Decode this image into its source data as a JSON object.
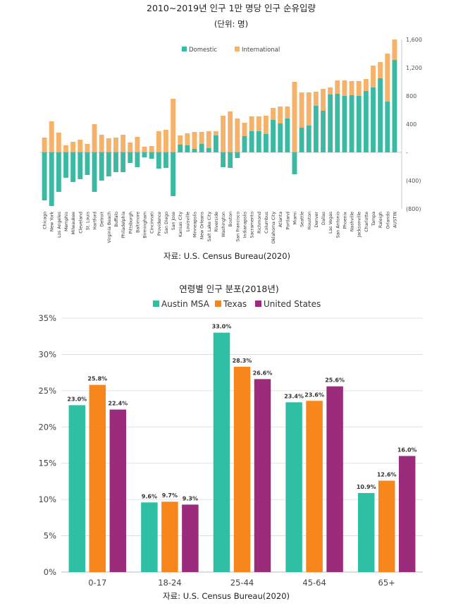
{
  "chart_data": [
    {
      "type": "bar",
      "stacked": true,
      "title": "2010~2019년 인구 1만 명당 인구 순유입량",
      "subtitle": "(단위: 명)",
      "source": "자료: U.S. Census Bureau(2020)",
      "legend_position": "top-center",
      "ylim": [
        -800,
        1600
      ],
      "y_ticks": [
        1600,
        1200,
        800,
        400,
        0,
        -400,
        -800
      ],
      "y_tick_labels": [
        "1,600",
        "1,200",
        "800",
        "400",
        "-",
        "(400)",
        "(800)"
      ],
      "categories": [
        "Chicago",
        "New York",
        "Los Angeles",
        "Memphis",
        "Milwaukee",
        "Cleveland",
        "St. Louis",
        "Hartford",
        "Detroit",
        "Virginia Beach",
        "Buffalo",
        "Philadelphia",
        "Pittsburgh",
        "Baltimore",
        "Birmingham",
        "Cincinnati",
        "Providence",
        "San Diego",
        "San Jose",
        "Kansas City",
        "Louisville",
        "Minneapolis",
        "New Orleans",
        "Salt Lake City",
        "Riverside",
        "Washington",
        "Boston",
        "San Francisco",
        "Indianapolis",
        "Sacramento",
        "Richmond",
        "Columbus",
        "Oklahoma City",
        "Atlanta",
        "Portland",
        "Miami",
        "Seattle",
        "Houston",
        "Denver",
        "Dallas",
        "Las Vegas",
        "San Antonio",
        "Phoenix",
        "Nashville",
        "Jacksonville",
        "Charlotte",
        "Tampa",
        "Raleigh",
        "Orlando",
        "AUSTIN"
      ],
      "series": [
        {
          "name": "Domestic",
          "color": "#3cb9a3",
          "values": [
            -680,
            -760,
            -560,
            -360,
            -420,
            -380,
            -320,
            -560,
            -400,
            -340,
            -280,
            -280,
            -150,
            -210,
            -70,
            -90,
            -230,
            -220,
            -620,
            110,
            100,
            50,
            120,
            60,
            240,
            -210,
            -220,
            -80,
            230,
            300,
            300,
            260,
            460,
            410,
            480,
            -310,
            350,
            380,
            660,
            590,
            820,
            830,
            800,
            810,
            800,
            870,
            920,
            1050,
            720,
            1310
          ]
        },
        {
          "name": "International",
          "color": "#f5b26b",
          "values": [
            210,
            440,
            280,
            100,
            150,
            180,
            120,
            400,
            250,
            200,
            210,
            250,
            140,
            220,
            80,
            90,
            300,
            320,
            760,
            130,
            170,
            240,
            170,
            240,
            60,
            520,
            580,
            480,
            190,
            210,
            210,
            260,
            170,
            240,
            170,
            1000,
            500,
            470,
            200,
            310,
            100,
            190,
            220,
            200,
            210,
            170,
            310,
            230,
            680,
            290
          ]
        }
      ]
    },
    {
      "type": "bar",
      "title": "연령별 인구 분포(2018년)",
      "source": "자료: U.S. Census Bureau(2020)",
      "legend_position": "top-center",
      "ylim": [
        0,
        35
      ],
      "y_ticks": [
        0,
        5,
        10,
        15,
        20,
        25,
        30,
        35
      ],
      "y_tick_labels": [
        "0%",
        "5%",
        "10%",
        "15%",
        "20%",
        "25%",
        "30%",
        "35%"
      ],
      "categories": [
        "0-17",
        "18-24",
        "25-44",
        "45-64",
        "65+"
      ],
      "series": [
        {
          "name": "Austin MSA",
          "color": "#2ebfa5",
          "values": [
            23.0,
            9.6,
            33.0,
            23.4,
            10.9
          ],
          "labels": [
            "23.0%",
            "9.6%",
            "33.0%",
            "23.4%",
            "10.9%"
          ]
        },
        {
          "name": "Texas",
          "color": "#f7861c",
          "values": [
            25.8,
            9.7,
            28.3,
            23.6,
            12.6
          ],
          "labels": [
            "25.8%",
            "9.7%",
            "28.3%",
            "23.6%",
            "12.6%"
          ]
        },
        {
          "name": "United States",
          "color": "#9b2c7c",
          "values": [
            22.4,
            9.3,
            26.6,
            25.6,
            16.0
          ],
          "labels": [
            "22.4%",
            "9.3%",
            "26.6%",
            "25.6%",
            "16.0%"
          ]
        }
      ]
    }
  ]
}
